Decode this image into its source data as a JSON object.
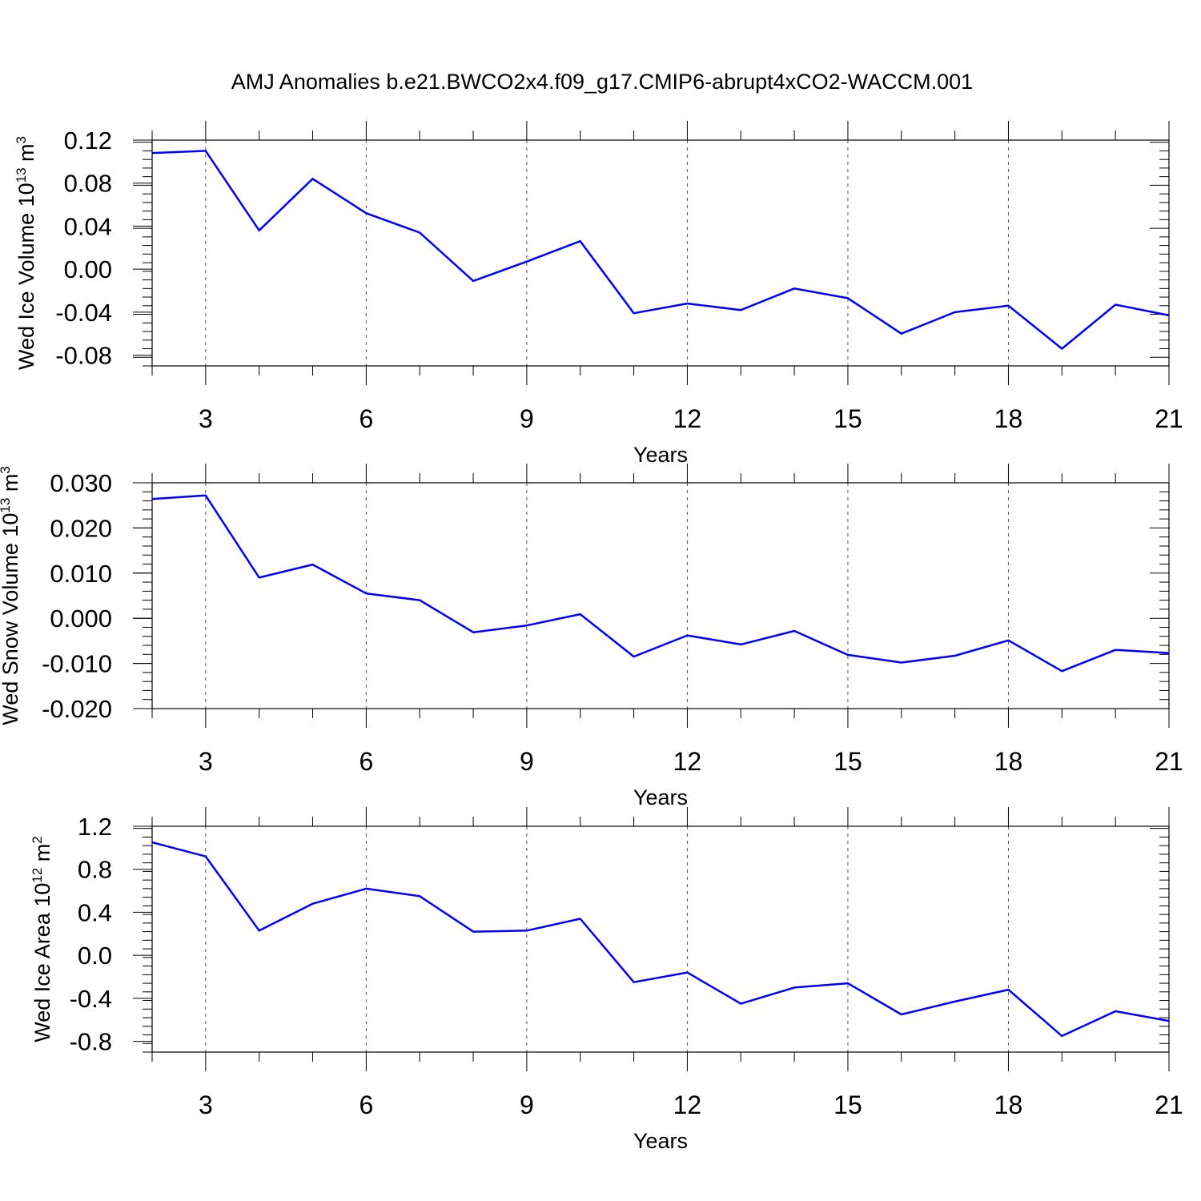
{
  "figure": {
    "title": "AMJ Anomalies b.e21.BWCO2x4.f09_g17.CMIP6-abrupt4xCO2-WACCM.001",
    "line_color": "#0000ff"
  },
  "chart_data": [
    {
      "type": "line",
      "ylabel": "Wed Ice Volume 10",
      "ylabel_exp": "13",
      "ylabel_unit": " m",
      "ylabel_unit_exp": "3",
      "xlabel": "Years",
      "xlim": [
        2,
        21
      ],
      "ylim": [
        -0.09,
        0.12
      ],
      "xticks": [
        3,
        6,
        9,
        12,
        15,
        18,
        21
      ],
      "yticks": [
        -0.08,
        -0.04,
        0.0,
        0.04,
        0.08,
        0.12
      ],
      "ytick_labels": [
        "-0.08",
        "-0.04",
        "0.00",
        "0.04",
        "0.08",
        "0.12"
      ],
      "yminor_step": 0.008,
      "grid_x": true,
      "series": [
        {
          "x": [
            2,
            3,
            4,
            5,
            6,
            7,
            8,
            9,
            10,
            11,
            12,
            13,
            14,
            15,
            16,
            17,
            18,
            19,
            20,
            21
          ],
          "values": [
            0.108,
            0.11,
            0.036,
            0.084,
            0.052,
            0.034,
            -0.011,
            0.007,
            0.026,
            -0.041,
            -0.032,
            -0.038,
            -0.018,
            -0.027,
            -0.06,
            -0.04,
            -0.034,
            -0.074,
            -0.033,
            -0.043
          ]
        }
      ]
    },
    {
      "type": "line",
      "ylabel": "Wed Snow Volume 10",
      "ylabel_exp": "13",
      "ylabel_unit": " m",
      "ylabel_unit_exp": "3",
      "xlabel": "Years",
      "xlim": [
        2,
        21
      ],
      "ylim": [
        -0.02,
        0.03
      ],
      "xticks": [
        3,
        6,
        9,
        12,
        15,
        18,
        21
      ],
      "yticks": [
        -0.02,
        -0.01,
        0.0,
        0.01,
        0.02,
        0.03
      ],
      "ytick_labels": [
        "-0.020",
        "-0.010",
        "0.000",
        "0.010",
        "0.020",
        "0.030"
      ],
      "yminor_step": 0.002,
      "grid_x": true,
      "series": [
        {
          "x": [
            2,
            3,
            4,
            5,
            6,
            7,
            8,
            9,
            10,
            11,
            12,
            13,
            14,
            15,
            16,
            17,
            18,
            19,
            20,
            21
          ],
          "values": [
            0.0264,
            0.0272,
            0.009,
            0.0119,
            0.0055,
            0.004,
            -0.0031,
            -0.0016,
            0.0009,
            -0.0085,
            -0.0038,
            -0.0058,
            -0.0028,
            -0.0081,
            -0.0098,
            -0.0083,
            -0.0049,
            -0.0117,
            -0.007,
            -0.0077
          ]
        }
      ]
    },
    {
      "type": "line",
      "ylabel": "Wed Ice Area 10",
      "ylabel_exp": "12",
      "ylabel_unit": " m",
      "ylabel_unit_exp": "2",
      "xlabel": "Years",
      "xlim": [
        2,
        21
      ],
      "ylim": [
        -0.9,
        1.2
      ],
      "xticks": [
        3,
        6,
        9,
        12,
        15,
        18,
        21
      ],
      "yticks": [
        -0.8,
        -0.4,
        0.0,
        0.4,
        0.8,
        1.2
      ],
      "ytick_labels": [
        "-0.8",
        "-0.4",
        "0.0",
        "0.4",
        "0.8",
        "1.2"
      ],
      "yminor_step": 0.08,
      "grid_x": true,
      "series": [
        {
          "x": [
            2,
            3,
            4,
            5,
            6,
            7,
            8,
            9,
            10,
            11,
            12,
            13,
            14,
            15,
            16,
            17,
            18,
            19,
            20,
            21
          ],
          "values": [
            1.05,
            0.92,
            0.23,
            0.48,
            0.62,
            0.55,
            0.22,
            0.23,
            0.34,
            -0.25,
            -0.16,
            -0.45,
            -0.3,
            -0.26,
            -0.55,
            -0.43,
            -0.32,
            -0.75,
            -0.52,
            -0.61
          ]
        }
      ]
    }
  ]
}
